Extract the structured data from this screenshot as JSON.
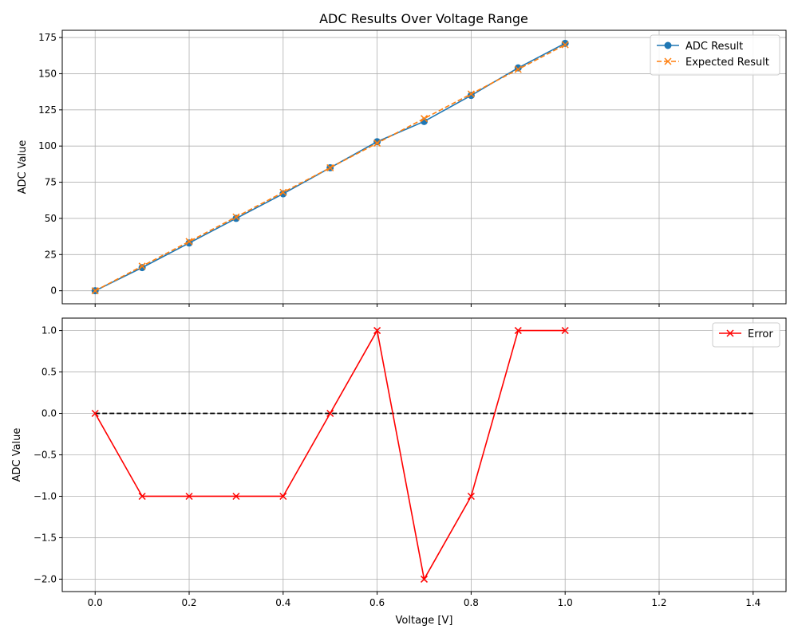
{
  "figure": {
    "title": "ADC Results Over Voltage Range"
  },
  "chart_data": [
    {
      "type": "line",
      "title": "ADC Results Over Voltage Range",
      "xlabel": "",
      "ylabel": "ADC Value",
      "xlim": [
        -0.07,
        1.47
      ],
      "ylim": [
        -9,
        180
      ],
      "x_ticks": [
        0.0,
        0.2,
        0.4,
        0.6,
        0.8,
        1.0,
        1.2,
        1.4
      ],
      "y_ticks": [
        0,
        25,
        50,
        75,
        100,
        125,
        150,
        175
      ],
      "y_tick_labels": [
        "0",
        "25",
        "50",
        "75",
        "100",
        "125",
        "150",
        "175"
      ],
      "show_x_tick_labels": false,
      "grid": true,
      "legend": "top-right",
      "x": [
        0.0,
        0.1,
        0.2,
        0.3,
        0.4,
        0.5,
        0.6,
        0.7,
        0.8,
        0.9,
        1.0
      ],
      "series": [
        {
          "name": "ADC Result",
          "values": [
            0,
            16,
            33,
            50,
            67,
            85,
            103,
            117,
            135,
            154,
            171
          ],
          "color": "#1f77b4",
          "style": "solid",
          "marker": "circle"
        },
        {
          "name": "Expected Result",
          "values": [
            0,
            17,
            34,
            51,
            68,
            85,
            102,
            119,
            136,
            153,
            170
          ],
          "color": "#ff7f0e",
          "style": "dashed",
          "marker": "x"
        }
      ]
    },
    {
      "type": "line",
      "title": "",
      "xlabel": "Voltage [V]",
      "ylabel": "ADC Value",
      "xlim": [
        -0.07,
        1.47
      ],
      "ylim": [
        -2.15,
        1.15
      ],
      "x_ticks": [
        0.0,
        0.2,
        0.4,
        0.6,
        0.8,
        1.0,
        1.2,
        1.4
      ],
      "x_tick_labels": [
        "0.0",
        "0.2",
        "0.4",
        "0.6",
        "0.8",
        "1.0",
        "1.2",
        "1.4"
      ],
      "y_ticks": [
        1.0,
        0.5,
        0.0,
        -0.5,
        -1.0,
        -1.5,
        -2.0
      ],
      "y_tick_labels": [
        "1.0",
        "0.5",
        "0.0",
        "−0.5",
        "−1.0",
        "−1.5",
        "−2.0"
      ],
      "show_x_tick_labels": true,
      "grid": true,
      "legend": "top-right",
      "x": [
        0.0,
        0.1,
        0.2,
        0.3,
        0.4,
        0.5,
        0.6,
        0.7,
        0.8,
        0.9,
        1.0
      ],
      "series": [
        {
          "name": "Error",
          "values": [
            0,
            -1,
            -1,
            -1,
            -1,
            0,
            1,
            -2,
            -1,
            1,
            1
          ],
          "color": "#ff0000",
          "style": "solid",
          "marker": "x"
        }
      ],
      "reference_line": {
        "x": [
          0.0,
          1.4
        ],
        "y": [
          0,
          0
        ],
        "color": "#000000",
        "style": "dashed"
      }
    }
  ]
}
